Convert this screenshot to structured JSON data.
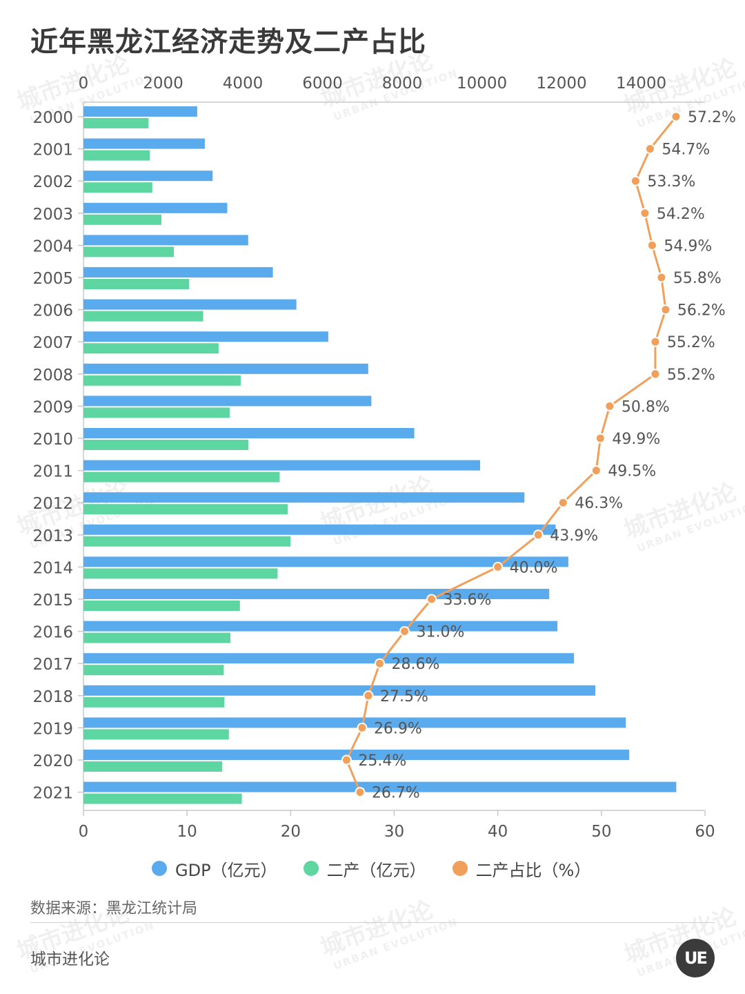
{
  "title": "近年黑龙江经济走势及二产占比",
  "source": "数据来源：黑龙江统计局",
  "brand": "城市进化论",
  "watermark": {
    "cn": "城市进化论",
    "en": "URBAN EVOLUTION"
  },
  "logo_text": "UE",
  "colors": {
    "gdp": "#5AAAEE",
    "secondary": "#5ED6A2",
    "ratio": "#F0A05A"
  },
  "chart_data": {
    "type": "bar",
    "orientation": "horizontal",
    "categories": [
      "2000",
      "2001",
      "2002",
      "2003",
      "2004",
      "2005",
      "2006",
      "2007",
      "2008",
      "2009",
      "2010",
      "2011",
      "2012",
      "2013",
      "2014",
      "2015",
      "2016",
      "2017",
      "2018",
      "2019",
      "2020",
      "2021"
    ],
    "series": [
      {
        "name": "GDP（亿元）",
        "type": "bar",
        "axis": "top",
        "values": [
          2855,
          3046,
          3242,
          3609,
          4134,
          4754,
          5344,
          6145,
          7147,
          7226,
          8303,
          9956,
          11068,
          11850,
          12170,
          11690,
          11896,
          12313,
          12846,
          13613,
          13698,
          14879
        ]
      },
      {
        "name": "二产（亿元）",
        "type": "bar",
        "axis": "top",
        "values": [
          1633,
          1666,
          1728,
          1956,
          2269,
          2653,
          3004,
          3392,
          3947,
          3670,
          4142,
          4925,
          5125,
          5196,
          4873,
          3927,
          3688,
          3522,
          3538,
          3650,
          3483,
          3975
        ]
      },
      {
        "name": "二产占比（%）",
        "type": "line",
        "axis": "bottom",
        "values": [
          57.2,
          54.7,
          53.3,
          54.2,
          54.9,
          55.8,
          56.2,
          55.2,
          55.2,
          50.8,
          49.9,
          49.5,
          46.3,
          43.9,
          40.0,
          33.6,
          31.0,
          28.6,
          27.5,
          26.9,
          25.4,
          26.7
        ],
        "labels": [
          "57.2%",
          "54.7%",
          "53.3%",
          "54.2%",
          "54.9%",
          "55.8%",
          "56.2%",
          "55.2%",
          "55.2%",
          "50.8%",
          "49.9%",
          "49.5%",
          "46.3%",
          "43.9%",
          "40.0%",
          "33.6%",
          "31.0%",
          "28.6%",
          "27.5%",
          "26.9%",
          "25.4%",
          "26.7%"
        ]
      }
    ],
    "top_axis": {
      "ticks": [
        "0",
        "2000",
        "4000",
        "6000",
        "8000",
        "10000",
        "12000",
        "14000"
      ],
      "range": [
        0,
        15600
      ]
    },
    "bottom_axis": {
      "ticks": [
        "0",
        "10",
        "20",
        "30",
        "40",
        "50",
        "60"
      ],
      "range": [
        0,
        60
      ]
    },
    "legend": [
      "GDP（亿元）",
      "二产（亿元）",
      "二产占比（%）"
    ],
    "legend_position": "bottom",
    "grid": false
  }
}
